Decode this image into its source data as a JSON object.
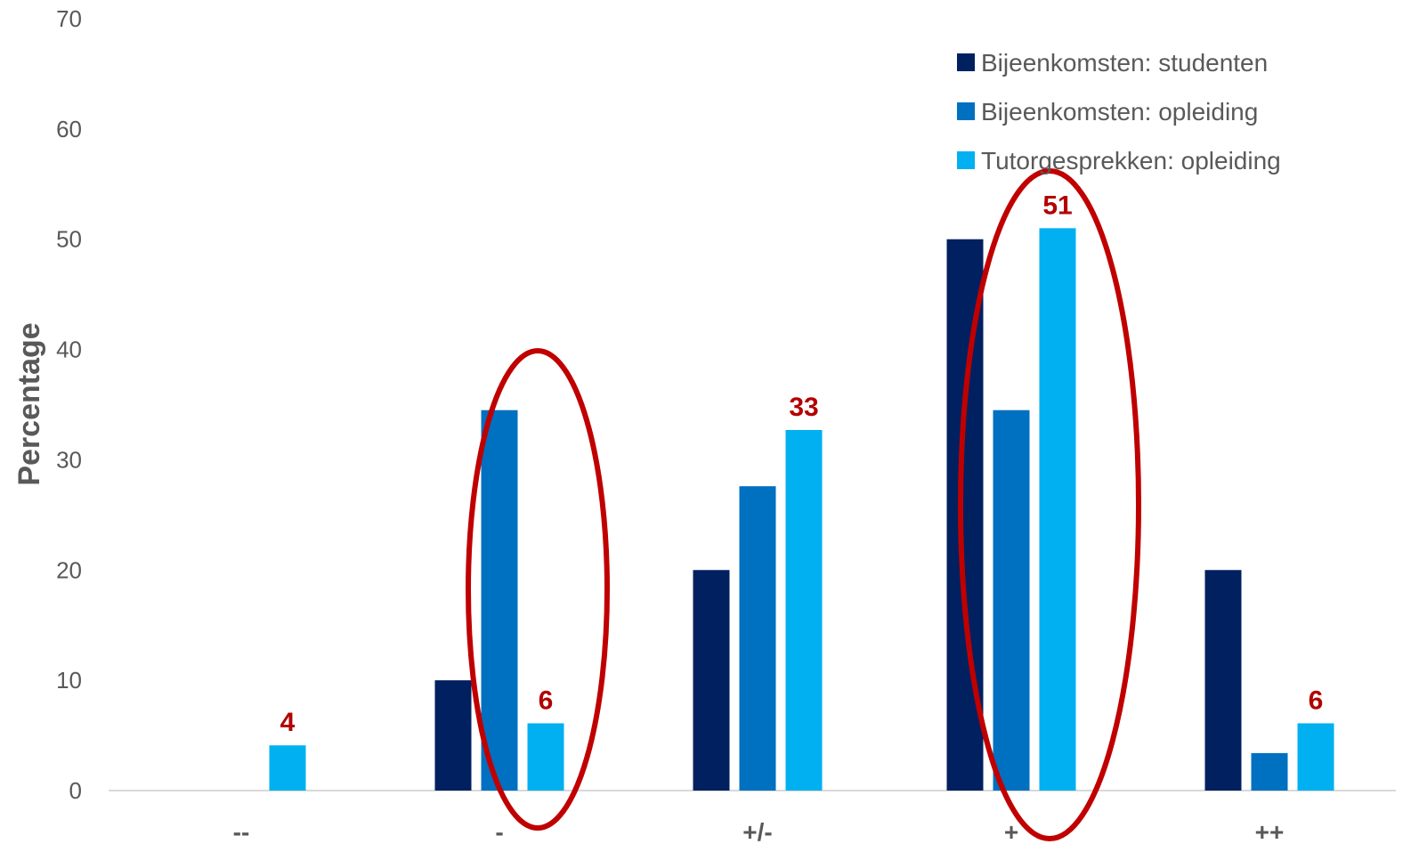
{
  "chart_data": {
    "type": "bar",
    "categories": [
      "--",
      "-",
      "+/-",
      "+",
      "++"
    ],
    "series": [
      {
        "name": "Bijeenkomsten: studenten",
        "color": "#002060",
        "values": [
          0,
          10,
          20,
          50,
          20
        ]
      },
      {
        "name": "Bijeenkomsten: opleiding",
        "color": "#0070c0",
        "values": [
          0,
          34.5,
          27.6,
          34.5,
          3.4
        ]
      },
      {
        "name": "Tutorgesprekken: opleiding",
        "color": "#00b0f0",
        "values": [
          4.1,
          6.1,
          32.7,
          51,
          6.1
        ]
      }
    ],
    "ylabel": "Percentage",
    "xlabel": "",
    "ylim": [
      0,
      70
    ],
    "yticks": [
      0,
      10,
      20,
      30,
      40,
      50,
      60,
      70
    ],
    "grid": false,
    "legend_position": "top-right",
    "annotations": [
      {
        "category": "--",
        "series": "Tutorgesprekken: opleiding",
        "text": "4",
        "color": "#b30000"
      },
      {
        "category": "-",
        "series": "Tutorgesprekken: opleiding",
        "text": "6",
        "color": "#b30000"
      },
      {
        "category": "+/-",
        "series": "Tutorgesprekken: opleiding",
        "text": "33",
        "color": "#b30000"
      },
      {
        "category": "+",
        "series": "Tutorgesprekken: opleiding",
        "text": "51",
        "color": "#b30000"
      },
      {
        "category": "++",
        "series": "Tutorgesprekken: opleiding",
        "text": "6",
        "color": "#b30000"
      }
    ],
    "highlight_ellipses": [
      {
        "category": "-",
        "color": "#c00000"
      },
      {
        "category": "+",
        "color": "#c00000"
      }
    ]
  }
}
